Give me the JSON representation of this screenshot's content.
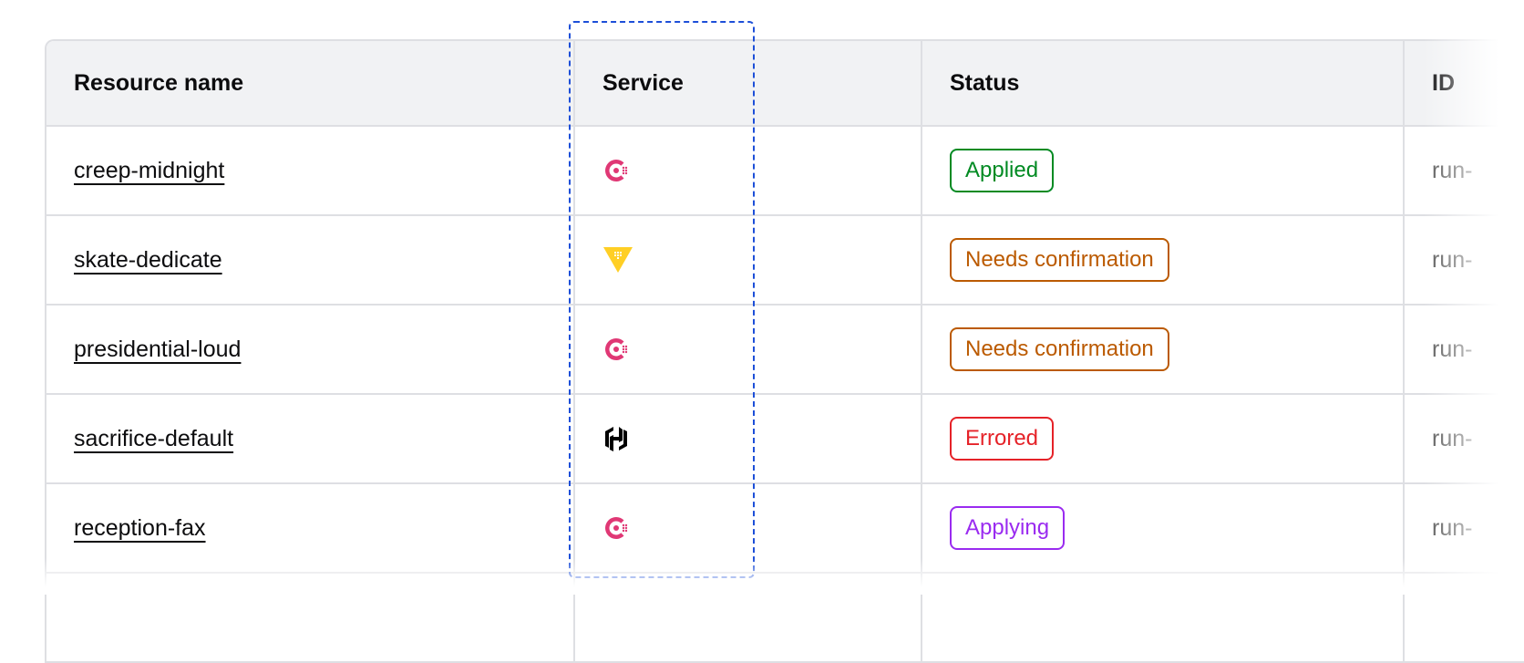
{
  "table": {
    "columns": [
      "Resource name",
      "Service",
      "Status",
      "ID"
    ],
    "rows": [
      {
        "name": "creep-midnight",
        "service": "consul-icon",
        "status": "Applied",
        "status_color": "#008a22",
        "id": "run-"
      },
      {
        "name": "skate-dedicate",
        "service": "vault-icon",
        "status": "Needs confirmation",
        "status_color": "#bb5a00",
        "id": "run-"
      },
      {
        "name": "presidential-loud",
        "service": "consul-icon",
        "status": "Needs confirmation",
        "status_color": "#bb5a00",
        "id": "run-"
      },
      {
        "name": "sacrifice-default",
        "service": "hashicorp-icon",
        "status": "Errored",
        "status_color": "#e52228",
        "id": "run-"
      },
      {
        "name": "reception-fax",
        "service": "consul-icon",
        "status": "Applying",
        "status_color": "#9a2bf0",
        "id": "run-"
      }
    ]
  },
  "colors": {
    "consul": "#e03875",
    "vault": "#ffcf25",
    "hashicorp": "#000000",
    "highlight": "#1d4fd8"
  }
}
